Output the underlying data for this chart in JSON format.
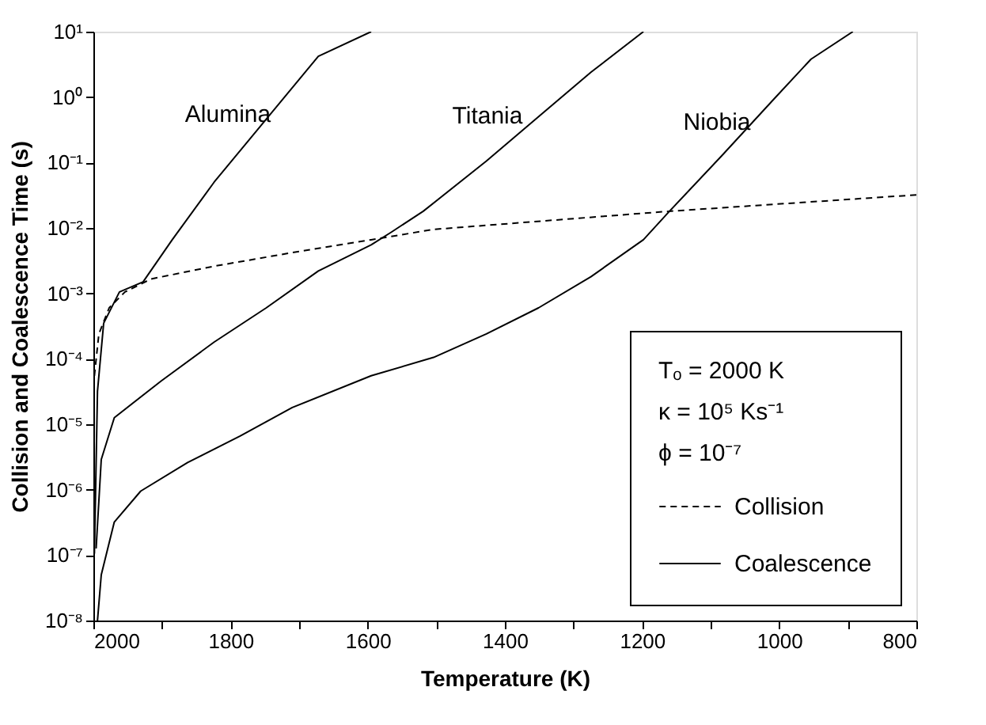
{
  "chart_data": {
    "type": "line",
    "xlabel": "Temperature (K)",
    "ylabel": "Collision and Coalescence Time (s)",
    "xlim": [
      2000,
      800
    ],
    "xticks": [
      2000,
      {
        "value": 1900,
        "label": null
      },
      1800,
      {
        "value": 1700,
        "label": null
      },
      1600,
      {
        "value": 1500,
        "label": null
      },
      1400,
      {
        "value": 1300,
        "label": null
      },
      1200,
      {
        "value": 1100,
        "label": null
      },
      1000,
      {
        "value": 900,
        "label": null
      },
      800
    ],
    "ylim": [
      1e-08,
      10
    ],
    "log": true,
    "yticks": [
      {
        "value": 1e-08,
        "label": "10⁻⁸"
      },
      {
        "value": 1e-07,
        "label": "10⁻⁷"
      },
      {
        "value": 1e-06,
        "label": "10⁻⁶"
      },
      {
        "value": 1e-05,
        "label": "10⁻⁵"
      },
      {
        "value": 0.0001,
        "label": "10⁻⁴"
      },
      {
        "value": 0.001,
        "label": "10⁻³"
      },
      {
        "value": 0.01,
        "label": "10⁻²"
      },
      {
        "value": 0.1,
        "label": "10⁻¹"
      },
      {
        "value": 1,
        "label": "10⁰"
      },
      {
        "value": 10,
        "label": "10¹"
      }
    ],
    "grid": false,
    "legend": "bottom right",
    "marker": "none",
    "series": [
      {
        "name": "Collision",
        "color": "#000000",
        "line_style": "dashed",
        "x": [
          1998.5,
          1992,
          1977,
          1954,
          1916,
          1824,
          1710,
          1595,
          1504,
          1160,
          800
        ],
        "values": [
          5.5e-05,
          0.00024,
          0.0006,
          0.00105,
          0.00166,
          0.0026,
          0.0042,
          0.0066,
          0.0095,
          0.018,
          0.032
        ]
      },
      {
        "name": "Alumina",
        "color": "#000000",
        "line_style": "solid",
        "x": [
          1998.5,
          1994,
          1985,
          1962,
          1927.5,
          1885,
          1824,
          1748,
          1672,
          1595
        ],
        "values": [
          1.05e-07,
          3.2e-05,
          0.00035,
          0.00105,
          0.0015,
          0.0066,
          0.05,
          0.46,
          4.2,
          10
        ]
      },
      {
        "name": "Titania",
        "color": "#000000",
        "line_style": "solid",
        "x": [
          1996,
          1988.5,
          1969.5,
          1901,
          1824,
          1748,
          1672,
          1595,
          1565,
          1519,
          1427,
          1351,
          1274.5,
          1198
        ],
        "values": [
          1.26e-07,
          2.9e-06,
          1.26e-05,
          4.6e-05,
          0.00018,
          0.0006,
          0.0022,
          0.0055,
          0.0087,
          0.018,
          0.105,
          0.5,
          2.4,
          10
        ]
      },
      {
        "name": "Niobia",
        "color": "#000000",
        "line_style": "solid",
        "x": [
          1994,
          1988.5,
          1969.5,
          1931,
          1862.6,
          1786,
          1710,
          1595,
          1504,
          1427,
          1351,
          1274.5,
          1198,
          1160,
          1084,
          1007,
          953.6,
          892.6
        ],
        "values": [
          1e-08,
          5e-08,
          3.2e-07,
          9.5e-07,
          2.6e-06,
          6.6e-06,
          1.8e-05,
          5.5e-05,
          0.000105,
          0.00024,
          0.0006,
          0.0018,
          0.0066,
          0.018,
          0.126,
          0.95,
          3.8,
          10
        ]
      }
    ],
    "annotations": [
      "Tₒ = 2000 K",
      "κ = 10⁵ Ks⁻¹",
      "ϕ = 10⁻⁷",
      "Coalescence"
    ]
  }
}
